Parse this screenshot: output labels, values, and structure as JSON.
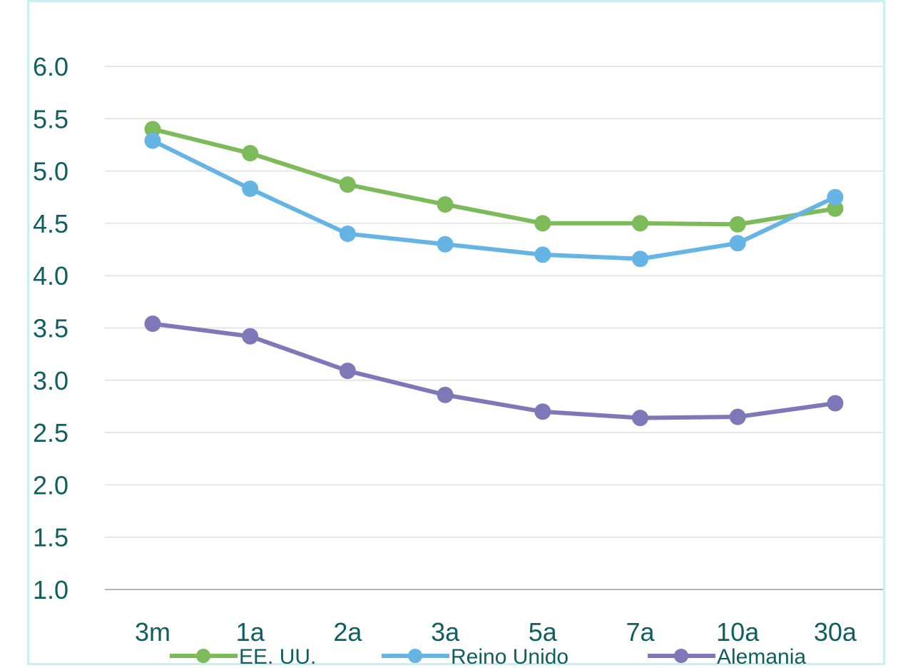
{
  "chart_data": {
    "type": "line",
    "title": "",
    "xlabel": "",
    "ylabel": "",
    "categories": [
      "3m",
      "1a",
      "2a",
      "3a",
      "5a",
      "7a",
      "10a",
      "30a"
    ],
    "y_ticks": [
      "1.0",
      "1.5",
      "2.0",
      "2.5",
      "3.0",
      "3.5",
      "4.0",
      "4.5",
      "5.0",
      "5.5",
      "6.0"
    ],
    "ylim": [
      1.0,
      6.0
    ],
    "grid": true,
    "legend_position": "bottom",
    "series": [
      {
        "name": "EE. UU.",
        "color": "#7dba5a",
        "values": [
          5.4,
          5.17,
          4.87,
          4.68,
          4.5,
          4.5,
          4.49,
          4.64
        ]
      },
      {
        "name": "Reino Unido",
        "color": "#66b4e3",
        "values": [
          5.29,
          4.83,
          4.4,
          4.3,
          4.2,
          4.16,
          4.31,
          4.75
        ]
      },
      {
        "name": "Alemania",
        "color": "#7e78b8",
        "values": [
          3.54,
          3.42,
          3.09,
          2.86,
          2.7,
          2.64,
          2.65,
          2.78
        ]
      }
    ]
  }
}
